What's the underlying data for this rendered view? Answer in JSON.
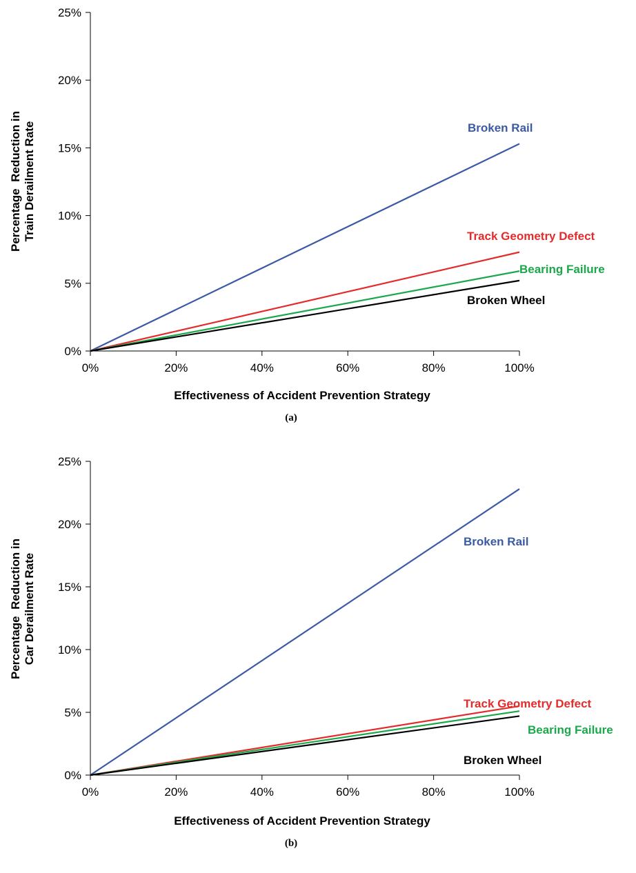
{
  "colors": {
    "broken_rail": "#3a5aa6",
    "track_geometry": "#e32b2b",
    "bearing_failure": "#1aa84a",
    "broken_wheel": "#000000",
    "axis": "#000000"
  },
  "chart_data": [
    {
      "type": "line",
      "panel_label": "(a)",
      "xlabel": "Effectiveness of Accident Prevention Strategy",
      "ylabel_lines": [
        "Percentage  Reduction in",
        "Train Derailment Rate"
      ],
      "xlim": [
        0,
        100
      ],
      "ylim": [
        0,
        25
      ],
      "xticks": [
        "0%",
        "20%",
        "40%",
        "60%",
        "80%",
        "100%"
      ],
      "yticks": [
        "0%",
        "5%",
        "10%",
        "15%",
        "20%",
        "25%"
      ],
      "grid": false,
      "series": [
        {
          "name": "Broken Rail",
          "color_key": "broken_rail",
          "x": [
            0,
            100
          ],
          "y": [
            0,
            15.3
          ]
        },
        {
          "name": "Track Geometry Defect",
          "color_key": "track_geometry",
          "x": [
            0,
            100
          ],
          "y": [
            0,
            7.3
          ]
        },
        {
          "name": "Bearing Failure",
          "color_key": "bearing_failure",
          "x": [
            0,
            100
          ],
          "y": [
            0,
            5.9
          ]
        },
        {
          "name": "Broken Wheel",
          "color_key": "broken_wheel",
          "x": [
            0,
            100
          ],
          "y": [
            0,
            5.2
          ]
        }
      ]
    },
    {
      "type": "line",
      "panel_label": "(b)",
      "xlabel": "Effectiveness of Accident Prevention Strategy",
      "ylabel_lines": [
        "Percentage  Reduction in",
        "Car Derailment Rate"
      ],
      "xlim": [
        0,
        100
      ],
      "ylim": [
        0,
        25
      ],
      "xticks": [
        "0%",
        "20%",
        "40%",
        "60%",
        "80%",
        "100%"
      ],
      "yticks": [
        "0%",
        "5%",
        "10%",
        "15%",
        "20%",
        "25%"
      ],
      "grid": false,
      "series": [
        {
          "name": "Broken Rail",
          "color_key": "broken_rail",
          "x": [
            0,
            100
          ],
          "y": [
            0,
            22.8
          ]
        },
        {
          "name": "Track Geometry Defect",
          "color_key": "track_geometry",
          "x": [
            0,
            100
          ],
          "y": [
            0,
            5.5
          ]
        },
        {
          "name": "Bearing Failure",
          "color_key": "bearing_failure",
          "x": [
            0,
            100
          ],
          "y": [
            0,
            5.1
          ]
        },
        {
          "name": "Broken Wheel",
          "color_key": "broken_wheel",
          "x": [
            0,
            100
          ],
          "y": [
            0,
            4.7
          ]
        }
      ]
    }
  ]
}
